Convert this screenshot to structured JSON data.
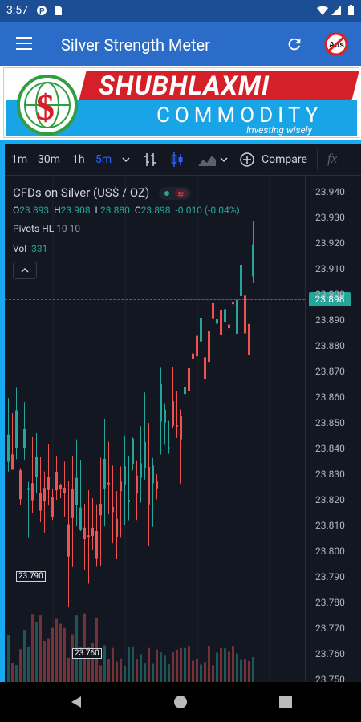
{
  "status_bar": {
    "time": "3:57"
  },
  "app_bar": {
    "title": "Silver Strength Meter",
    "noads_label": "Ads"
  },
  "banner": {
    "brand_top": "SHUBHLAXMI",
    "brand_bottom": "COMMODITY",
    "tagline": "Investing wisely"
  },
  "toolbar": {
    "intervals": [
      "1m",
      "30m",
      "1h",
      "5m"
    ],
    "active_interval": "5m",
    "compare_label": "Compare",
    "fx_label": "fx"
  },
  "legend": {
    "title": "CFDs on Silver (US$ / OZ)",
    "open_label": "O",
    "open": "23.893",
    "high_label": "H",
    "high": "23.908",
    "low_label": "L",
    "low": "23.880",
    "close_label": "C",
    "close": "23.898",
    "change": "-0.010 (-0.04%)",
    "pivots_label": "Pivots HL",
    "pivots_value": "10 10",
    "vol_label": "Vol",
    "vol_value": "331"
  },
  "price_axis": {
    "ticks": [
      "23.940",
      "23.930",
      "23.920",
      "23.910",
      "23.900",
      "23.890",
      "23.880",
      "23.870",
      "23.860",
      "23.850",
      "23.840",
      "23.830",
      "23.820",
      "23.810",
      "23.800",
      "23.790",
      "23.780",
      "23.770",
      "23.760",
      "23.750"
    ],
    "last_price": "23.898"
  },
  "pivot_labels": [
    "23.790",
    "23.760"
  ],
  "colors": {
    "up": "#26a69a",
    "down": "#ef5350",
    "background": "#131722",
    "app_bar": "#2a6cc7"
  }
}
